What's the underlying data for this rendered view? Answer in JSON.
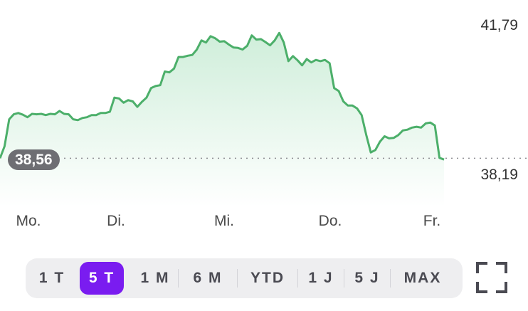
{
  "chart_data": {
    "type": "area",
    "y_axis_labels": {
      "max": "41,79",
      "min": "38,19"
    },
    "last_value_label": "38,56",
    "x_axis_labels": [
      "Mo.",
      "Di.",
      "Mi.",
      "Do.",
      "Fr."
    ],
    "ylim": [
      38.19,
      41.79
    ],
    "reference_value": 38.56,
    "series": [
      {
        "values": [
          38.56,
          38.85,
          39.5,
          39.62,
          39.65,
          39.61,
          39.55,
          39.63,
          39.62,
          39.63,
          39.6,
          39.63,
          39.62,
          39.7,
          39.63,
          39.62,
          39.5,
          39.48,
          39.53,
          39.55,
          39.6,
          39.6,
          39.65,
          39.65,
          39.68,
          40.02,
          40.0,
          39.9,
          39.96,
          39.93,
          39.8,
          39.92,
          40.02,
          40.25,
          40.3,
          40.32,
          40.65,
          40.63,
          40.72,
          41.0,
          41.0,
          41.03,
          41.05,
          41.18,
          41.4,
          41.35,
          41.5,
          41.45,
          41.37,
          41.38,
          41.3,
          41.23,
          41.22,
          41.18,
          41.27,
          41.52,
          41.42,
          41.43,
          41.36,
          41.28,
          41.4,
          41.58,
          41.35,
          40.9,
          41.02,
          40.92,
          40.8,
          40.95,
          40.87,
          40.93,
          40.9,
          40.93,
          40.85,
          40.25,
          40.18,
          39.93,
          39.83,
          39.83,
          39.76,
          39.6,
          39.13,
          38.7,
          38.76,
          38.96,
          39.09,
          39.04,
          39.05,
          39.12,
          39.23,
          39.25,
          39.3,
          39.32,
          39.3,
          39.4,
          39.42,
          39.35,
          38.57,
          38.53
        ]
      }
    ],
    "grid": false,
    "colors": {
      "line": "#4caf6a",
      "fill_top": "#cfeeda",
      "fill_bottom": "#ffffff",
      "reference": "#8e8e93"
    }
  },
  "range_selector": {
    "tabs": [
      "1 T",
      "5 T",
      "1 M",
      "6 M",
      "YTD",
      "1 J",
      "5 J",
      "MAX"
    ],
    "active": "5 T",
    "active_color": "#7a1cf0"
  },
  "fullscreen_icon": "expand-icon"
}
